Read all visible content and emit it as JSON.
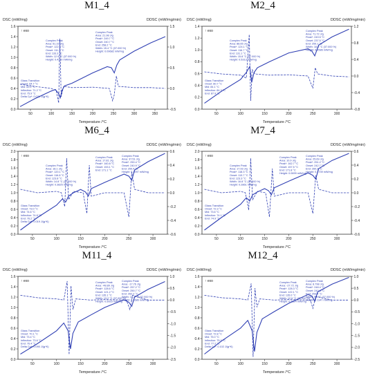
{
  "figure": {
    "titles": [
      "M1_4",
      "M2_4",
      "M6_4",
      "M7_4",
      "M11_4",
      "M12_4"
    ]
  },
  "common": {
    "left_axis": "DSC (mW/mg)",
    "right_axis": "DDSC (mW/mg/min)",
    "xlabel": "Temperature /°C",
    "exo": "↑ exo",
    "colors": {
      "dsc": "#2f3fb3",
      "ddsc": "#2f3fb3",
      "area": "#9aa8c8",
      "axis": "#333333",
      "note": "#2f3fb3"
    }
  },
  "chart_data": [
    {
      "type": "line",
      "title": "M1_4",
      "xlabel": "Temperature /°C",
      "ylabel": "DSC (mW/mg)",
      "y2label": "DDSC (mW/mg/min)",
      "xlim": [
        20,
        380
      ],
      "ylim": [
        0.0,
        1.6
      ],
      "y2lim": [
        -0.5,
        1.5
      ],
      "xticks": [
        50,
        100,
        150,
        200,
        250,
        300,
        350
      ],
      "yticks": [
        0.0,
        0.2,
        0.4,
        0.6,
        0.8,
        1.0,
        1.2,
        1.4,
        1.6
      ],
      "y2ticks": [
        -0.5,
        0.0,
        0.5,
        1.0,
        1.5
      ],
      "series": [
        {
          "axis": "left",
          "style": "solid",
          "x": [
            25,
            60,
            100,
            110,
            118,
            122,
            126,
            132,
            150,
            200,
            235,
            245,
            252,
            258,
            265,
            300,
            340,
            375
          ],
          "y": [
            0.05,
            0.2,
            0.35,
            0.38,
            0.3,
            0.22,
            0.36,
            0.45,
            0.5,
            0.7,
            0.82,
            0.8,
            0.7,
            0.85,
            0.95,
            1.12,
            1.28,
            1.4
          ]
        },
        {
          "axis": "right",
          "style": "dash",
          "x": [
            25,
            60,
            100,
            112,
            118,
            121,
            124,
            130,
            150,
            200,
            240,
            248,
            252,
            257,
            262,
            300,
            340,
            375
          ],
          "y": [
            0.1,
            0.05,
            0.0,
            -0.05,
            -0.35,
            1.2,
            -0.2,
            0.05,
            0.02,
            0.03,
            0.0,
            -0.3,
            -0.15,
            0.3,
            0.05,
            0.02,
            0.02,
            0.0
          ]
        }
      ],
      "notes": [
        {
          "lines": [
            "Complex Peak",
            "Area: 51.15 J/g",
            "Peak*: 122.5 °C",
            "Onset: 111.2 °C",
            "End: 133.3 °C",
            "Width: 12.9 °C (37.000 %)",
            "Height: 0.4110 mW/mg"
          ],
          "pos": "left"
        },
        {
          "lines": [
            "Complex Peak",
            "Area: 21.98 J/g",
            "Peak*: 249.7 °C",
            "Onset: 240.7 °C",
            "End: 258.2 °C",
            "Width: 15.4 °C (37.000 %)",
            "Height: 0.09682 mW/mg"
          ],
          "pos": "mid"
        },
        {
          "lines": [
            "Glass Transition",
            "Onset: 64.7 °C",
            "Mid: 69.2 °C",
            "Inflection: 71.2 °C",
            "End: 75.9 °C",
            "Delta Cp*: 0.021 J/(g*K)"
          ],
          "pos": "low"
        }
      ]
    },
    {
      "type": "line",
      "title": "M2_4",
      "xlabel": "Temperature /°C",
      "ylabel": "DSC (mW/mg)",
      "y2label": "DDSC (mW/mg/min)",
      "xlim": [
        20,
        330
      ],
      "ylim": [
        0.0,
        1.4
      ],
      "y2lim": [
        -0.8,
        1.2
      ],
      "xticks": [
        50,
        100,
        150,
        200,
        250,
        300
      ],
      "yticks": [
        0.0,
        0.2,
        0.4,
        0.6,
        0.8,
        1.0,
        1.2,
        1.4
      ],
      "y2ticks": [
        -0.8,
        -0.4,
        0.0,
        0.4,
        0.8,
        1.2
      ],
      "series": [
        {
          "axis": "left",
          "style": "solid",
          "x": [
            25,
            60,
            100,
            112,
            119,
            123,
            128,
            135,
            160,
            200,
            240,
            248,
            254,
            262,
            290,
            325
          ],
          "y": [
            0.1,
            0.3,
            0.5,
            0.62,
            0.72,
            0.45,
            0.62,
            0.7,
            0.8,
            0.95,
            1.02,
            0.98,
            0.9,
            1.08,
            1.22,
            1.35
          ]
        },
        {
          "axis": "right",
          "style": "dash",
          "x": [
            25,
            60,
            100,
            112,
            118,
            121,
            124,
            130,
            160,
            200,
            240,
            250,
            255,
            260,
            290,
            325
          ],
          "y": [
            0.1,
            0.05,
            0.02,
            -0.05,
            1.0,
            -0.6,
            0.15,
            0.05,
            0.02,
            0.03,
            0.0,
            -0.3,
            0.2,
            0.05,
            0.0,
            -0.02
          ]
        }
      ],
      "notes": [
        {
          "lines": [
            "Complex Peak",
            "Area: 88.65 J/g",
            "Peak*: 124.1 °C",
            "Onset: 116.7 °C",
            "End: 131.1 °C",
            "Width: 15.8 °C (37.000 %)",
            "Height: 0.5313 mW/mg"
          ],
          "pos": "left"
        },
        {
          "lines": [
            "Complex Peak",
            "Area: 71.72 J/g",
            "Peak*: 249.5 °C",
            "Onset: 237.5 °C",
            "End: 259.1 °C",
            "Width: 18.0 °C (37.000 %)",
            "Height: 0.2586 mW/mg"
          ],
          "pos": "right"
        },
        {
          "lines": [
            "Glass Transition",
            "Onset: 80.7 °C",
            "Mid: 84.1 °C",
            "Inflection: 84.3 °C",
            "End: 87.9 °C"
          ],
          "pos": "low"
        }
      ]
    },
    {
      "type": "line",
      "title": "M6_4",
      "xlabel": "Temperature /°C",
      "ylabel": "DSC (mW/mg)",
      "y2label": "DDSC (mW/mg/min)",
      "xlim": [
        20,
        330
      ],
      "ylim": [
        0.0,
        2.0
      ],
      "y2lim": [
        -0.6,
        0.6
      ],
      "xticks": [
        50,
        100,
        150,
        200,
        250,
        300
      ],
      "yticks": [
        0.0,
        0.2,
        0.4,
        0.6,
        0.8,
        1.0,
        1.2,
        1.4,
        1.6,
        1.8,
        2.0
      ],
      "y2ticks": [
        -0.6,
        -0.4,
        -0.2,
        0.0,
        0.2,
        0.4,
        0.6
      ],
      "series": [
        {
          "axis": "left",
          "style": "solid",
          "x": [
            25,
            60,
            100,
            112,
            119,
            125,
            135,
            150,
            160,
            166,
            172,
            200,
            240,
            250,
            256,
            262,
            290,
            325
          ],
          "y": [
            0.1,
            0.4,
            0.7,
            0.85,
            0.78,
            0.92,
            1.0,
            1.08,
            1.02,
            0.92,
            1.1,
            1.25,
            1.45,
            1.4,
            1.3,
            1.55,
            1.75,
            1.95
          ]
        },
        {
          "axis": "right",
          "style": "dash",
          "x": [
            25,
            60,
            100,
            110,
            117,
            121,
            125,
            135,
            155,
            163,
            168,
            172,
            200,
            240,
            250,
            256,
            262,
            290,
            325
          ],
          "y": [
            0.05,
            0.0,
            0.02,
            0.0,
            -0.2,
            0.5,
            -0.1,
            0.02,
            0.0,
            -0.3,
            0.4,
            -0.05,
            0.0,
            0.0,
            -0.35,
            0.3,
            0.05,
            0.0,
            0.0
          ]
        }
      ],
      "notes": [
        {
          "lines": [
            "Complex Peak",
            "Area: 18.1 J/g",
            "Peak*: 120.1 °C",
            "Onset: 116.8 °C",
            "End: 123.8 °C",
            "Width: 14.8 °C (37.000 %)",
            "Height: 0.3825 mW/mg"
          ],
          "pos": "left"
        },
        {
          "lines": [
            "Complex Peak",
            "Area: 17.81 J/g",
            "Peak*: 160.8 °C",
            "Onset: 153.1 °C",
            "End: 171.1 °C"
          ],
          "pos": "mid"
        },
        {
          "lines": [
            "Complex Peak",
            "Area: 37.51 J/g",
            "Peak*: 250.4 °C",
            "Onset: 240.9 °C",
            "End: 259.4 °C",
            "Height: 0.3097 mW/mg"
          ],
          "pos": "right"
        },
        {
          "lines": [
            "Glass Transition",
            "Onset: 73.0 °C",
            "Mid: 74.6 °C",
            "Inflection: 74.8 °C",
            "End: 76.2 °C",
            "Delta Cp*: 0.019 J/(g*K)"
          ],
          "pos": "low"
        }
      ]
    },
    {
      "type": "line",
      "title": "M7_4",
      "xlabel": "Temperature /°C",
      "ylabel": "DSC (mW/mg)",
      "y2label": "DDSC (mW/mg/min)",
      "xlim": [
        20,
        330
      ],
      "ylim": [
        0.0,
        2.0
      ],
      "y2lim": [
        -0.6,
        0.6
      ],
      "xticks": [
        50,
        100,
        150,
        200,
        250,
        300
      ],
      "yticks": [
        0.0,
        0.2,
        0.4,
        0.6,
        0.8,
        1.0,
        1.2,
        1.4,
        1.6,
        1.8,
        2.0
      ],
      "y2ticks": [
        -0.6,
        -0.4,
        -0.2,
        0.0,
        0.2,
        0.4,
        0.6
      ],
      "series": [
        {
          "axis": "left",
          "style": "solid",
          "x": [
            25,
            60,
            100,
            112,
            119,
            125,
            135,
            150,
            158,
            164,
            170,
            200,
            240,
            250,
            256,
            262,
            290,
            325
          ],
          "y": [
            0.1,
            0.4,
            0.72,
            0.88,
            0.8,
            0.95,
            1.02,
            1.1,
            1.05,
            0.95,
            1.12,
            1.28,
            1.48,
            1.42,
            1.33,
            1.58,
            1.78,
            1.95
          ]
        },
        {
          "axis": "right",
          "style": "dash",
          "x": [
            25,
            60,
            100,
            110,
            117,
            121,
            125,
            135,
            152,
            160,
            166,
            170,
            200,
            240,
            250,
            256,
            262,
            290,
            325
          ],
          "y": [
            0.05,
            0.0,
            0.02,
            0.0,
            -0.25,
            0.5,
            -0.1,
            0.02,
            0.0,
            -0.35,
            0.35,
            -0.05,
            0.0,
            0.0,
            -0.3,
            0.25,
            0.05,
            0.0,
            0.0
          ]
        }
      ],
      "notes": [
        {
          "lines": [
            "Complex Peak",
            "Area: 17.93 J/g",
            "Peak*: 118.3 °C",
            "Onset: 113.7 °C",
            "End: 123.3 °C",
            "Width: 16.8 °C (37.000 %)",
            "Height: 0.2861 mW/mg"
          ],
          "pos": "left"
        },
        {
          "lines": [
            "Complex Peak",
            "Area: 10.9 J/g",
            "Peak*: 162.7 °C",
            "Onset: 157.5 °C",
            "End: 171.8 °C",
            "Height: 0.0699 mW/mg"
          ],
          "pos": "mid"
        },
        {
          "lines": [
            "Complex Peak",
            "Area: 25.69 J/g",
            "Peak*: 251.2 °C",
            "Onset: 242.7 °C",
            "End: 260.2 °C",
            "Height: 0.1739 mW/mg"
          ],
          "pos": "right"
        },
        {
          "lines": [
            "Glass Transition",
            "Onset: 72.3 °C",
            "Mid: 73.6 °C",
            "Inflection: 74.1 °C",
            "End: 74.9 °C"
          ],
          "pos": "low"
        }
      ]
    },
    {
      "type": "line",
      "title": "M11_4",
      "xlabel": "Temperature /°C",
      "ylabel": "DSC (mW/mg)",
      "y2label": "DDSC (mW/mg/min)",
      "xlim": [
        20,
        330
      ],
      "ylim": [
        0.0,
        1.6
      ],
      "y2lim": [
        -2.5,
        1.0
      ],
      "xticks": [
        50,
        100,
        150,
        200,
        250,
        300
      ],
      "yticks": [
        0.0,
        0.2,
        0.4,
        0.6,
        0.8,
        1.0,
        1.2,
        1.4,
        1.6
      ],
      "y2ticks": [
        -2.5,
        -2.0,
        -1.5,
        -1.0,
        -0.5,
        0.0,
        0.5,
        1.0
      ],
      "series": [
        {
          "axis": "left",
          "style": "solid",
          "x": [
            25,
            60,
            100,
            115,
            124,
            129,
            134,
            145,
            170,
            200,
            240,
            250,
            256,
            262,
            290,
            325
          ],
          "y": [
            0.1,
            0.3,
            0.55,
            0.7,
            0.55,
            0.2,
            0.5,
            0.72,
            0.85,
            1.0,
            1.15,
            1.1,
            1.02,
            1.2,
            1.35,
            1.5
          ]
        },
        {
          "axis": "right",
          "style": "dash",
          "x": [
            25,
            60,
            100,
            115,
            122,
            126,
            130,
            134,
            140,
            170,
            200,
            245,
            252,
            258,
            290,
            325
          ],
          "y": [
            0.2,
            0.1,
            0.05,
            0.0,
            0.8,
            -2.3,
            0.6,
            -0.4,
            0.05,
            0.0,
            0.02,
            0.0,
            -0.4,
            0.2,
            0.0,
            0.0
          ]
        }
      ],
      "notes": [
        {
          "lines": [
            "Complex Peak",
            "Area: -17.76 J/g",
            "Peak*: 257.2 °C",
            "Onset: 250.7 °C",
            "End: 262.2 °C",
            "Width: 10.2 °C (37.000 %)",
            "Height: 0.1686 mW/mg"
          ],
          "pos": "right"
        },
        {
          "lines": [
            "Complex Peak",
            "Area: -48.89 J/g",
            "Peak*: 128.6 °C",
            "Onset: 121.2 °C",
            "End: 135.1 °C",
            "Width: 13.2 °C (37.000 %)",
            "Height: 0.5925 mW/mg"
          ],
          "pos": "mid"
        },
        {
          "lines": [
            "Glass Transition",
            "Onset: 70.1 °C",
            "Mid: 73.4 °C",
            "Inflection: 73.6 °C",
            "End: 76.4 °C",
            "Delta Cp*: 0.090 J/(g*K)"
          ],
          "pos": "low"
        }
      ]
    },
    {
      "type": "line",
      "title": "M12_4",
      "xlabel": "Temperature /°C",
      "ylabel": "DSC (mW/mg)",
      "y2label": "DDSC (mW/mg/min)",
      "xlim": [
        20,
        330
      ],
      "ylim": [
        0.0,
        1.6
      ],
      "y2lim": [
        -2.5,
        1.0
      ],
      "xticks": [
        50,
        100,
        150,
        200,
        250,
        300
      ],
      "yticks": [
        0.0,
        0.2,
        0.4,
        0.6,
        0.8,
        1.0,
        1.2,
        1.4,
        1.6
      ],
      "y2ticks": [
        -2.5,
        -2.0,
        -1.5,
        -1.0,
        -0.5,
        0.0,
        0.5,
        1.0
      ],
      "series": [
        {
          "axis": "left",
          "style": "solid",
          "x": [
            25,
            60,
            100,
            115,
            124,
            129,
            134,
            145,
            170,
            200,
            240,
            248,
            254,
            260,
            290,
            325
          ],
          "y": [
            0.1,
            0.35,
            0.6,
            0.75,
            0.55,
            0.15,
            0.52,
            0.78,
            0.92,
            1.08,
            1.25,
            1.22,
            1.12,
            1.3,
            1.45,
            1.58
          ]
        },
        {
          "axis": "right",
          "style": "dash",
          "x": [
            25,
            60,
            100,
            115,
            122,
            126,
            130,
            134,
            140,
            170,
            200,
            245,
            250,
            256,
            290,
            325
          ],
          "y": [
            0.2,
            0.1,
            0.05,
            0.0,
            0.7,
            -2.4,
            0.5,
            -0.3,
            0.05,
            0.0,
            0.02,
            0.0,
            -0.35,
            0.15,
            0.0,
            0.0
          ]
        }
      ],
      "notes": [
        {
          "lines": [
            "Complex Peak",
            "Area: 8.798 J/g",
            "Peak*: 248.4 °C",
            "Onset: 243.8 °C",
            "End: 253.4 °C",
            "Width: 9.4 °C (37.000 %)",
            "Height: 0.1147 mW/mg"
          ],
          "pos": "right"
        },
        {
          "lines": [
            "Complex Peak",
            "Area: -27.72 J/g",
            "Peak*: 128.3 °C",
            "Onset: 122.1 °C",
            "End: 135.0 °C",
            "Width: 12.6 °C (37.000 %)",
            "Height: 0.5824 mW/mg"
          ],
          "pos": "mid"
        },
        {
          "lines": [
            "Glass Transition",
            "Onset: 72.8 °C",
            "Mid: 75.0 °C",
            "Inflection: 75.0 °C",
            "End: 77.2 °C",
            "Delta Cp*: 0.102 J/(g*K)"
          ],
          "pos": "low"
        }
      ]
    }
  ]
}
